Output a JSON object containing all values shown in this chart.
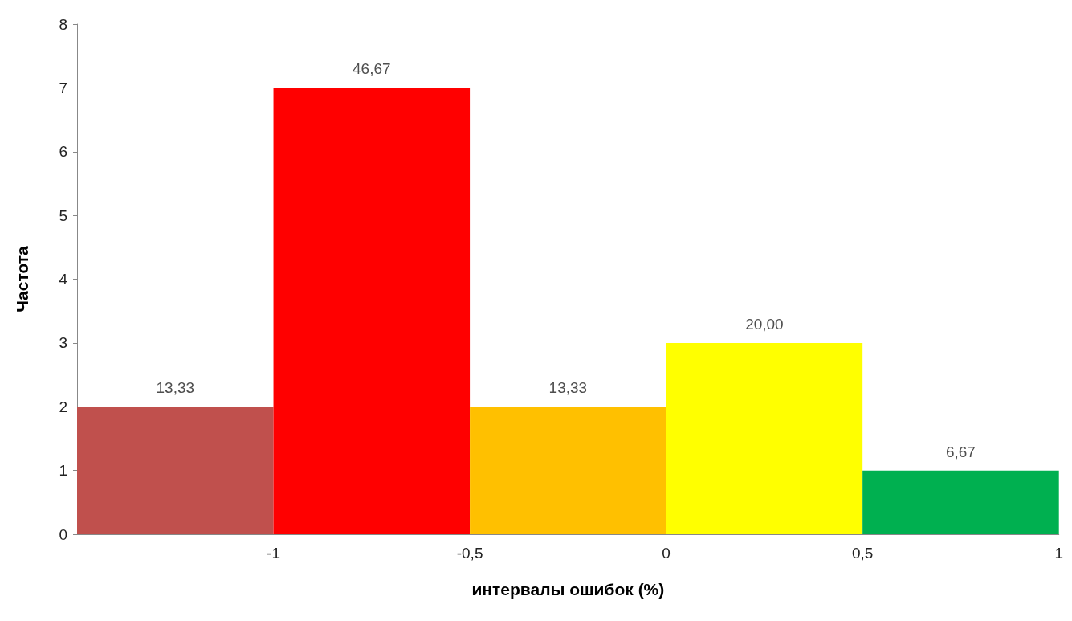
{
  "chart_data": {
    "type": "histogram",
    "xlabel": "интервалы ошибок (%)",
    "ylabel": "Частота",
    "bins": [
      -1.5,
      -1,
      -0.5,
      0,
      0.5,
      1
    ],
    "values": [
      2,
      7,
      2,
      3,
      1
    ],
    "annotations": [
      {
        "text": "13,33",
        "x": -1.25,
        "y": 2
      },
      {
        "text": "46,67",
        "x": -0.75,
        "y": 7
      },
      {
        "text": "13,33",
        "x": -0.25,
        "y": 2
      },
      {
        "text": "20,00",
        "x": 0.25,
        "y": 3
      },
      {
        "text": "6,67",
        "x": 0.75,
        "y": 1
      }
    ],
    "colors": [
      "#c0504d",
      "#ff0000",
      "#ffc000",
      "#ffff00",
      "#00b050"
    ],
    "xlim": [
      -1.5,
      1
    ],
    "xticks": [
      {
        "value": -1,
        "label": "-1"
      },
      {
        "value": -0.5,
        "label": "-0,5"
      },
      {
        "value": 0,
        "label": "0"
      },
      {
        "value": 0.5,
        "label": "0,5"
      },
      {
        "value": 1,
        "label": "1"
      }
    ],
    "ylim": [
      0,
      8
    ],
    "yticks": [
      0,
      1,
      2,
      3,
      4,
      5,
      6,
      7,
      8
    ]
  }
}
